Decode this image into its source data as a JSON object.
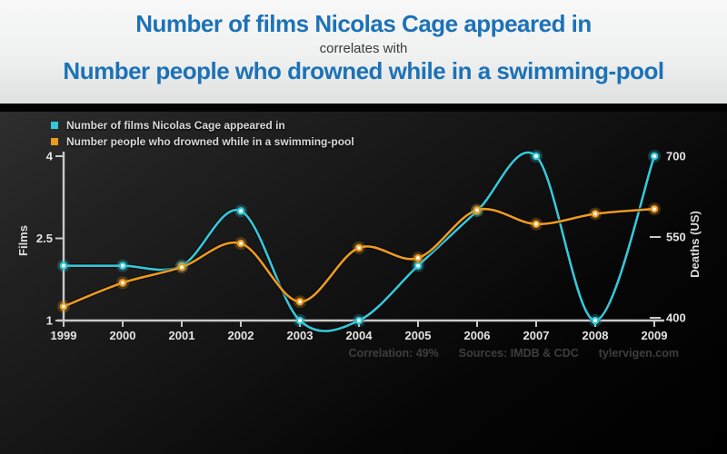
{
  "header": {
    "title_line1": "Number of films Nicolas Cage appeared in",
    "connector": "correlates with",
    "title_line2": "Number people who drowned while in a swimming-pool",
    "title_color": "#1c72b8"
  },
  "chart_data": {
    "type": "line",
    "x": [
      "1999",
      "2000",
      "2001",
      "2002",
      "2003",
      "2004",
      "2005",
      "2006",
      "2007",
      "2008",
      "2009"
    ],
    "series": [
      {
        "name": "Number of films Nicolas Cage appeared in",
        "axis": "left",
        "color": "#35c7d9",
        "values": [
          2,
          2,
          2,
          3,
          1,
          1,
          2,
          3,
          4,
          1,
          4
        ]
      },
      {
        "name": "Number people who drowned while in a swimming-pool",
        "axis": "right",
        "color": "#ec9a1e",
        "values": [
          421,
          465,
          494,
          538,
          430,
          530,
          511,
          600,
          574,
          593,
          602
        ]
      }
    ],
    "left_axis": {
      "label": "Films",
      "ticks": [
        4,
        2.5,
        1
      ],
      "range": [
        1,
        4
      ]
    },
    "right_axis": {
      "label": "Deaths (US)",
      "ticks": [
        700,
        550,
        400
      ],
      "range": [
        400,
        700
      ]
    },
    "legend_position": "top-left",
    "grid": false
  },
  "footer": {
    "correlation": "Correlation: 49%",
    "sources": "Sources: IMDB & CDC",
    "site": "tylervigen.com"
  }
}
